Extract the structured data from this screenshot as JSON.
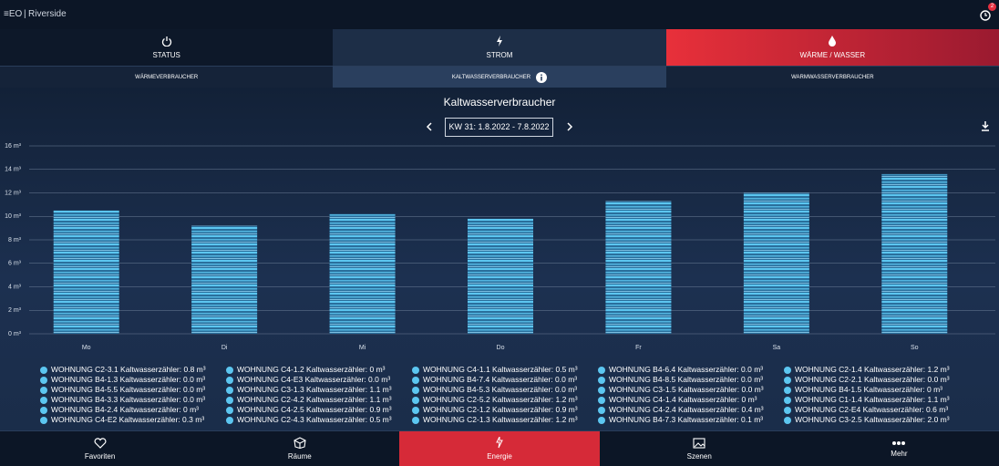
{
  "header": {
    "logo": "≡EO",
    "site": "Riverside",
    "badge": "2"
  },
  "tabs": [
    "STATUS",
    "STROM",
    "WÄRME / WASSER"
  ],
  "subtabs": [
    "WÄRMEVERBRAUCHER",
    "KALTWASSERVERBRAUCHER",
    "WARMWASSERVERBRAUCHER"
  ],
  "date_range": "KW 31: 1.8.2022 - 7.8.2022",
  "chart_data": {
    "type": "bar",
    "title": "Kaltwasserverbraucher",
    "categories": [
      "Mo",
      "Di",
      "Mi",
      "Do",
      "Fr",
      "Sa",
      "So"
    ],
    "values": [
      10.5,
      9.2,
      10.2,
      9.8,
      11.3,
      12.0,
      13.6
    ],
    "color": "#5cc6f0",
    "ylim": [
      0,
      16
    ],
    "yticks": [
      {
        "value": 0,
        "label": "0 m³"
      },
      {
        "value": 2,
        "label": "2 m³"
      },
      {
        "value": 4,
        "label": "4 m³"
      },
      {
        "value": 6,
        "label": "6 m³"
      },
      {
        "value": 8,
        "label": "8 m³"
      },
      {
        "value": 10,
        "label": "10 m³"
      },
      {
        "value": 12,
        "label": "12 m³"
      },
      {
        "value": 14,
        "label": "14 m³"
      },
      {
        "value": 16,
        "label": "16 m³"
      }
    ],
    "grid": true,
    "legend": [
      [
        "WOHNUNG C2-3.1 Kaltwasserzähler: 0.8 m³",
        "WOHNUNG B4-1.3 Kaltwasserzähler: 0.0 m³",
        "WOHNUNG B4-5.5 Kaltwasserzähler: 0.0 m³",
        "WOHNUNG B4-3.3 Kaltwasserzähler: 0.0 m³",
        "WOHNUNG B4-2.4 Kaltwasserzähler: 0 m³",
        "WOHNUNG C4-E2 Kaltwasserzähler: 0.3 m³"
      ],
      [
        "WOHNUNG C4-1.2 Kaltwasserzähler: 0 m³",
        "WOHNUNG C4-E3 Kaltwasserzähler: 0.0 m³",
        "WOHNUNG C3-1.3 Kaltwasserzähler: 1.1 m³",
        "WOHNUNG C2-4.2 Kaltwasserzähler: 1.1 m³",
        "WOHNUNG C4-2.5 Kaltwasserzähler: 0.9 m³",
        "WOHNUNG C2-4.3 Kaltwasserzähler: 0.5 m³"
      ],
      [
        "WOHNUNG C4-1.1 Kaltwasserzähler: 0.5 m³",
        "WOHNUNG B4-7.4 Kaltwasserzähler: 0.0 m³",
        "WOHNUNG B4-5.3 Kaltwasserzähler: 0.0 m³",
        "WOHNUNG C2-5.2 Kaltwasserzähler: 1.2 m³",
        "WOHNUNG C2-1.2 Kaltwasserzähler: 0.9 m³",
        "WOHNUNG C2-1.3 Kaltwasserzähler: 1.2 m³"
      ],
      [
        "WOHNUNG B4-6.4 Kaltwasserzähler: 0.0 m³",
        "WOHNUNG B4-8.5 Kaltwasserzähler: 0.0 m³",
        "WOHNUNG C3-1.5 Kaltwasserzähler: 0.0 m³",
        "WOHNUNG C4-1.4 Kaltwasserzähler: 0 m³",
        "WOHNUNG C4-2.4 Kaltwasserzähler: 0.4 m³",
        "WOHNUNG B4-7.3 Kaltwasserzähler: 0.1 m³"
      ],
      [
        "WOHNUNG C2-1.4 Kaltwasserzähler: 1.2 m³",
        "WOHNUNG C2-2.1 Kaltwasserzähler: 0.0 m³",
        "WOHNUNG B4-1.5 Kaltwasserzähler: 0 m³",
        "WOHNUNG C1-1.4 Kaltwasserzähler: 1.1 m³",
        "WOHNUNG C2-E4 Kaltwasserzähler: 0.6 m³",
        "WOHNUNG C3-2.5 Kaltwasserzähler: 2.0 m³"
      ]
    ]
  },
  "nav": [
    "Favoriten",
    "Räume",
    "Energie",
    "Szenen",
    "Mehr"
  ]
}
